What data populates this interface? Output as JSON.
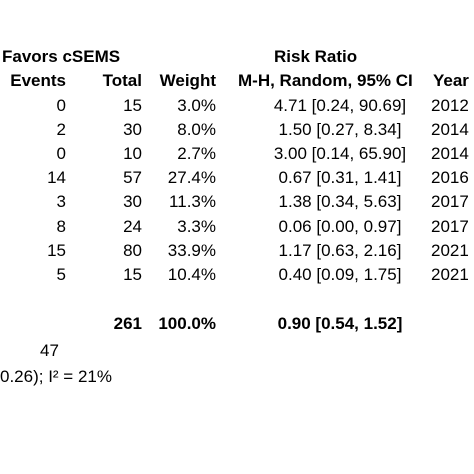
{
  "header": {
    "group_label": "Favors cSEMS",
    "effect_title": "Risk Ratio",
    "columns": {
      "events": "Events",
      "total": "Total",
      "weight": "Weight",
      "method": "M-H, Random, 95% CI",
      "year": "Year"
    }
  },
  "chart_data": {
    "type": "table",
    "columns": [
      "Events",
      "Total",
      "Weight",
      "M-H, Random, 95% CI",
      "Year"
    ],
    "rows": [
      {
        "events": "0",
        "total": "15",
        "weight": "3.0%",
        "ci": "4.71 [0.24, 90.69]",
        "year": "2012"
      },
      {
        "events": "2",
        "total": "30",
        "weight": "8.0%",
        "ci": "1.50 [0.27, 8.34]",
        "year": "2014"
      },
      {
        "events": "0",
        "total": "10",
        "weight": "2.7%",
        "ci": "3.00 [0.14, 65.90]",
        "year": "2014"
      },
      {
        "events": "14",
        "total": "57",
        "weight": "27.4%",
        "ci": "0.67 [0.31, 1.41]",
        "year": "2016"
      },
      {
        "events": "3",
        "total": "30",
        "weight": "11.3%",
        "ci": "1.38 [0.34, 5.63]",
        "year": "2017"
      },
      {
        "events": "8",
        "total": "24",
        "weight": "3.3%",
        "ci": "0.06 [0.00, 0.97]",
        "year": "2017"
      },
      {
        "events": "15",
        "total": "80",
        "weight": "33.9%",
        "ci": "1.17 [0.63, 2.16]",
        "year": "2021"
      },
      {
        "events": "5",
        "total": "15",
        "weight": "10.4%",
        "ci": "0.40 [0.09, 1.75]",
        "year": "2021"
      }
    ],
    "total": {
      "total": "261",
      "weight": "100.0%",
      "ci": "0.90 [0.54, 1.52]"
    },
    "total_events": "47",
    "heterogeneity": "0.26); I² = 21%"
  }
}
